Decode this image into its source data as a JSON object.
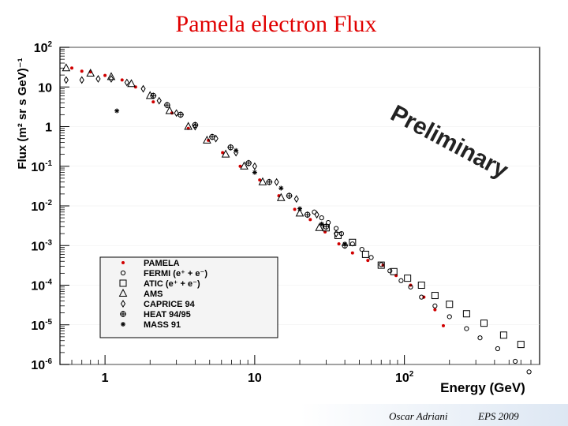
{
  "page": {
    "title": "Pamela electron Flux"
  },
  "footer": {
    "author": "Oscar Adriani",
    "event": "EPS 2009"
  },
  "watermark": "Preliminary",
  "chart_data": {
    "type": "scatter",
    "title": "Pamela electron Flux",
    "xlabel": "Energy (GeV)",
    "ylabel": "Flux (m² sr s GeV)⁻¹",
    "xscale": "log",
    "yscale": "log",
    "xlim": [
      0.5,
      800
    ],
    "ylim": [
      1e-06,
      100
    ],
    "x_ticks": [
      {
        "value": 1,
        "label": "1",
        "sup": ""
      },
      {
        "value": 10,
        "label": "10",
        "sup": ""
      },
      {
        "value": 100,
        "label": "10",
        "sup": "2"
      }
    ],
    "y_ticks": [
      {
        "value": 100,
        "label": "10",
        "sup": "2"
      },
      {
        "value": 10,
        "label": "10",
        "sup": ""
      },
      {
        "value": 1,
        "label": "1",
        "sup": ""
      },
      {
        "value": 0.1,
        "label": "10",
        "sup": "-1"
      },
      {
        "value": 0.01,
        "label": "10",
        "sup": "-2"
      },
      {
        "value": 0.001,
        "label": "10",
        "sup": "-3"
      },
      {
        "value": 0.0001,
        "label": "10",
        "sup": "-4"
      },
      {
        "value": 1e-05,
        "label": "10",
        "sup": "-5"
      },
      {
        "value": 1e-06,
        "label": "10",
        "sup": "-6"
      }
    ],
    "legend_position": "lower-left",
    "series": [
      {
        "name": "PAMELA",
        "marker": "dot",
        "color": "#d00000",
        "x": [
          0.6,
          0.7,
          0.8,
          1.0,
          1.3,
          1.6,
          2.1,
          2.8,
          3.6,
          4.9,
          6.1,
          8.0,
          10.8,
          14.5,
          18.5,
          23.5,
          29.5,
          36.5,
          45,
          57,
          72,
          88,
          110,
          135,
          160,
          182
        ],
        "y": [
          30,
          25,
          24,
          19.5,
          15,
          10,
          4.2,
          2.2,
          0.9,
          0.45,
          0.22,
          0.1,
          0.045,
          0.018,
          0.0082,
          0.0045,
          0.0022,
          0.0011,
          0.00065,
          0.00042,
          0.00032,
          0.000175,
          0.0001,
          5e-05,
          2.4e-05,
          9.5e-06
        ]
      },
      {
        "name": "FERMI (e⁺ + e⁻)",
        "marker": "circle",
        "color": "#000000",
        "x": [
          25,
          28,
          31,
          35,
          38,
          45,
          52,
          60,
          70,
          80,
          95,
          110,
          130,
          160,
          200,
          260,
          320,
          420,
          550,
          680
        ],
        "y": [
          0.007,
          0.005,
          0.0038,
          0.0027,
          0.002,
          0.0011,
          0.0008,
          0.0005,
          0.00033,
          0.00023,
          0.00013,
          9e-05,
          5e-05,
          3e-05,
          1.6e-05,
          8e-06,
          4.7e-06,
          2.5e-06,
          1.2e-06,
          6.5e-07
        ]
      },
      {
        "name": "ATIC (e⁺ + e⁻)",
        "marker": "square",
        "color": "#000000",
        "x": [
          30,
          36,
          45,
          55,
          70,
          85,
          105,
          130,
          160,
          200,
          260,
          340,
          460,
          600
        ],
        "y": [
          0.0028,
          0.0018,
          0.0012,
          0.0006,
          0.00032,
          0.00022,
          0.00015,
          0.0001,
          5.5e-05,
          3.3e-05,
          1.9e-05,
          1.1e-05,
          5.5e-06,
          3.2e-06
        ]
      },
      {
        "name": "AMS",
        "marker": "triangle",
        "color": "#000000",
        "x": [
          0.55,
          0.8,
          1.1,
          1.5,
          2.0,
          2.7,
          3.6,
          4.8,
          6.4,
          8.5,
          11.3,
          15,
          20,
          27
        ],
        "y": [
          30,
          22,
          18,
          12,
          6,
          2.5,
          1.0,
          0.45,
          0.2,
          0.1,
          0.04,
          0.016,
          0.0065,
          0.0028
        ]
      },
      {
        "name": "CAPRICE 94",
        "marker": "diamond",
        "color": "#000000",
        "x": [
          0.55,
          0.7,
          0.9,
          1.1,
          1.4,
          1.8,
          2.3,
          3.0,
          4.0,
          5.5,
          7.5,
          10,
          14,
          19,
          26,
          35
        ],
        "y": [
          15,
          15,
          16,
          16,
          13,
          9,
          4.5,
          2.2,
          1.0,
          0.5,
          0.22,
          0.1,
          0.04,
          0.015,
          0.006,
          0.002
        ]
      },
      {
        "name": "HEAT 94/95",
        "marker": "cross",
        "color": "#000000",
        "x": [
          2.1,
          2.6,
          3.2,
          4.0,
          5.2,
          6.9,
          9.1,
          12.5,
          17,
          22.5,
          30,
          40
        ],
        "y": [
          6,
          3.5,
          2.0,
          1.1,
          0.55,
          0.3,
          0.12,
          0.04,
          0.018,
          0.006,
          0.003,
          0.001
        ]
      },
      {
        "name": "MASS 91",
        "marker": "star",
        "color": "#000000",
        "x": [
          1.2,
          7.5,
          10,
          15,
          20,
          28,
          40
        ],
        "y": [
          2.5,
          0.25,
          0.07,
          0.028,
          0.0085,
          0.0035,
          0.0011
        ]
      }
    ]
  }
}
